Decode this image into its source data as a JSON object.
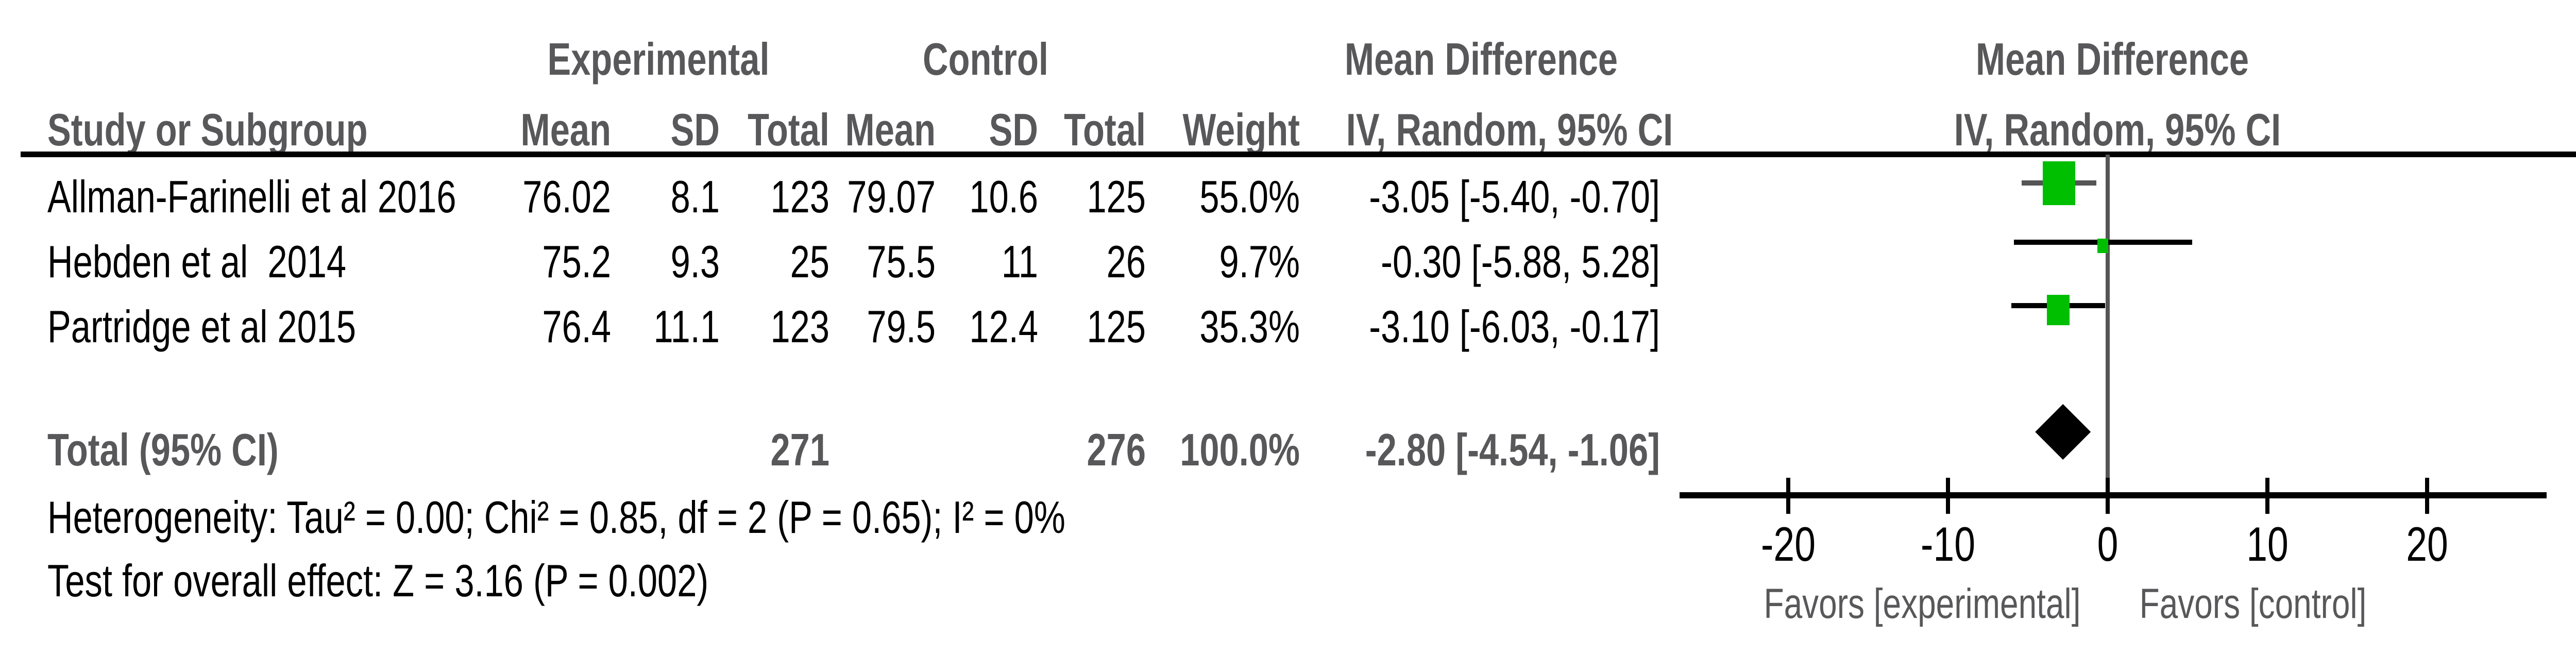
{
  "colors": {
    "green_square": "#00BE00",
    "gray_text": "#58585A",
    "gray_line": "#555555",
    "black": "#000000"
  },
  "header": {
    "experimental": "Experimental",
    "control": "Control",
    "mean_difference": "Mean Difference",
    "plot_mean_difference": "Mean Difference",
    "study": "Study or Subgroup",
    "exp_mean": "Mean",
    "exp_sd": "SD",
    "exp_total": "Total",
    "ctrl_mean": "Mean",
    "ctrl_sd": "SD",
    "ctrl_total": "Total",
    "weight": "Weight",
    "ci": "IV, Random, 95% CI",
    "plot_ci": "IV, Random, 95% CI"
  },
  "rows": [
    {
      "study": "Allman-Farinelli et al 2016",
      "exp_mean": "76.02",
      "exp_sd": "8.1",
      "exp_total": "123",
      "ctrl_mean": "79.07",
      "ctrl_sd": "10.6",
      "ctrl_total": "125",
      "weight": "55.0%",
      "ci": "-3.05 [-5.40, -0.70]"
    },
    {
      "study": "Hebden et al  2014",
      "exp_mean": "75.2",
      "exp_sd": "9.3",
      "exp_total": "25",
      "ctrl_mean": "75.5",
      "ctrl_sd": "11",
      "ctrl_total": "26",
      "weight": "9.7%",
      "ci": "-0.30 [-5.88, 5.28]"
    },
    {
      "study": "Partridge et al 2015",
      "exp_mean": "76.4",
      "exp_sd": "11.1",
      "exp_total": "123",
      "ctrl_mean": "79.5",
      "ctrl_sd": "12.4",
      "ctrl_total": "125",
      "weight": "35.3%",
      "ci": "-3.10 [-6.03, -0.17]"
    }
  ],
  "total_row": {
    "label": "Total (95% CI)",
    "exp_total": "271",
    "ctrl_total": "276",
    "weight": "100.0%",
    "ci": "-2.80 [-4.54, -1.06]"
  },
  "footer": {
    "heterogeneity": "Heterogeneity: Tau² = 0.00; Chi² = 0.85, df = 2 (P = 0.65); I² = 0%",
    "overall_effect": "Test for overall effect: Z = 3.16 (P = 0.002)"
  },
  "axis": {
    "ticks": [
      "-20",
      "-10",
      "0",
      "10",
      "20"
    ],
    "favors_left": "Favors [experimental]",
    "favors_right": "Favors [control]"
  },
  "chart_data": {
    "type": "forest",
    "effect_measure": "Mean Difference, IV, Random, 95% CI",
    "x_axis": {
      "tick_values": [
        -20,
        -10,
        0,
        10,
        20
      ],
      "favors_left": "Favors [experimental]",
      "favors_right": "Favors [control]"
    },
    "studies": [
      {
        "name": "Allman-Farinelli et al 2016",
        "md": -3.05,
        "ci_low": -5.4,
        "ci_high": -0.7,
        "weight_pct": 55.0
      },
      {
        "name": "Hebden et al  2014",
        "md": -0.3,
        "ci_low": -5.88,
        "ci_high": 5.28,
        "weight_pct": 9.7
      },
      {
        "name": "Partridge et al 2015",
        "md": -3.1,
        "ci_low": -6.03,
        "ci_high": -0.17,
        "weight_pct": 35.3
      }
    ],
    "total": {
      "name": "Total (95% CI)",
      "md": -2.8,
      "ci_low": -4.54,
      "ci_high": -1.06,
      "weight_pct": 100.0
    },
    "heterogeneity": {
      "tau2": 0.0,
      "chi2": 0.85,
      "df": 2,
      "p": 0.65,
      "i2_pct": 0
    },
    "overall_effect": {
      "z": 3.16,
      "p": 0.002
    }
  }
}
